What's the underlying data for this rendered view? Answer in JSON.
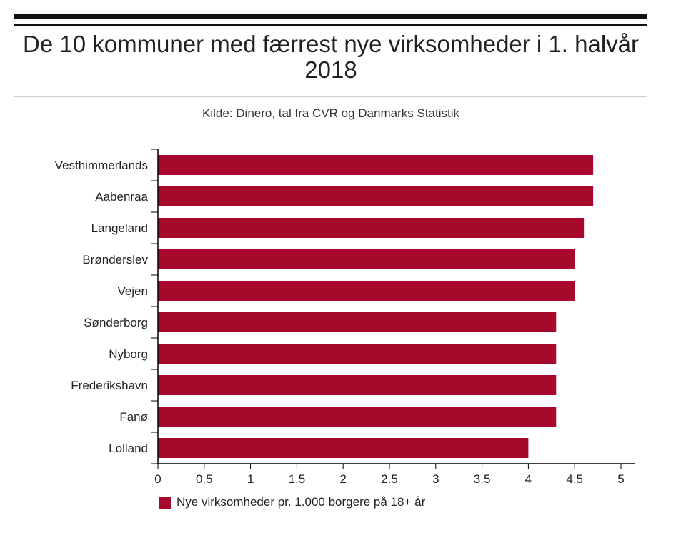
{
  "chart_data": {
    "type": "bar",
    "orientation": "horizontal",
    "title": "De 10 kommuner med færrest nye virksomheder i 1. halvår 2018",
    "subtitle": "Kilde: Dinero, tal fra CVR og Danmarks Statistik",
    "categories": [
      "Vesthimmerlands",
      "Aabenraa",
      "Langeland",
      "Brønderslev",
      "Vejen",
      "Sønderborg",
      "Nyborg",
      "Frederikshavn",
      "Fanø",
      "Lolland"
    ],
    "series": [
      {
        "name": "Nye virksomheder pr. 1.000 borgere på 18+ år",
        "values": [
          4.7,
          4.7,
          4.6,
          4.5,
          4.5,
          4.3,
          4.3,
          4.3,
          4.3,
          4.0
        ]
      }
    ],
    "xlim": [
      0,
      5
    ],
    "xticks": [
      "0",
      "0.5",
      "1",
      "1.5",
      "2",
      "2.5",
      "3",
      "3.5",
      "4",
      "4.5",
      "5"
    ],
    "grid": false,
    "legend_position": "bottom-left",
    "bar_color": "#a6092c"
  }
}
